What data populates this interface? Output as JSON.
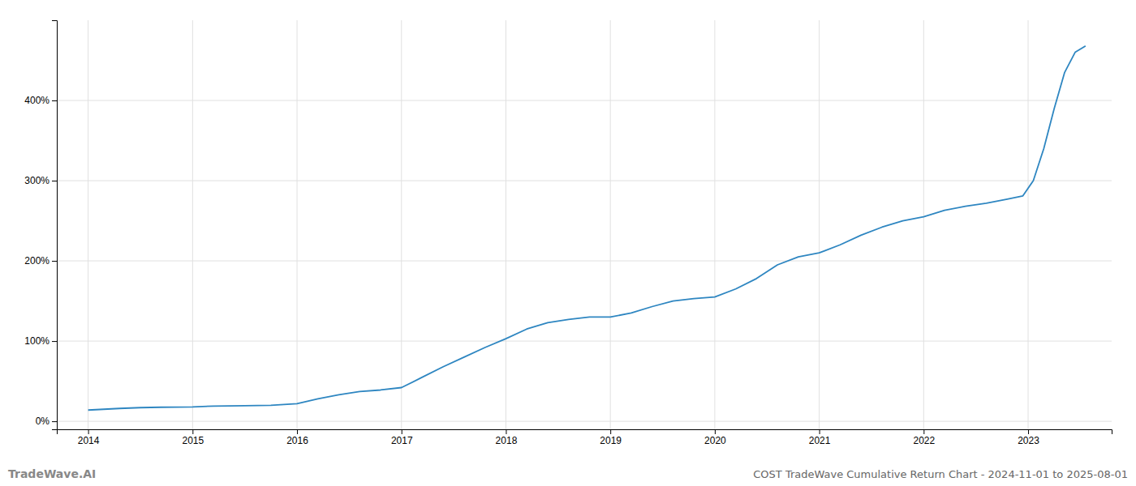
{
  "chart_data": {
    "type": "line",
    "title": "COST TradeWave Cumulative Return Chart - 2024-11-01 to 2025-08-01",
    "annotations": [
      "TradeWave.AI"
    ],
    "color": "#2e86c1",
    "grid": true,
    "x": [
      2014.0,
      2014.15,
      2014.3,
      2014.5,
      2014.7,
      2015.0,
      2015.2,
      2015.5,
      2015.75,
      2016.0,
      2016.2,
      2016.4,
      2016.6,
      2016.8,
      2017.0,
      2017.2,
      2017.4,
      2017.6,
      2017.8,
      2018.0,
      2018.2,
      2018.4,
      2018.6,
      2018.8,
      2019.0,
      2019.2,
      2019.4,
      2019.6,
      2019.8,
      2020.0,
      2020.2,
      2020.4,
      2020.6,
      2020.8,
      2021.0,
      2021.2,
      2021.4,
      2021.6,
      2021.8,
      2022.0,
      2022.2,
      2022.4,
      2022.6,
      2022.8,
      2022.95,
      2023.05,
      2023.15,
      2023.25,
      2023.35,
      2023.45,
      2023.55
    ],
    "values": [
      14,
      15,
      16,
      17,
      17.5,
      18,
      19,
      19.5,
      20,
      22,
      28,
      33,
      37,
      39,
      42,
      55,
      68,
      80,
      92,
      103,
      115,
      123,
      127,
      130,
      130,
      135,
      143,
      150,
      153,
      155,
      165,
      178,
      195,
      205,
      210,
      220,
      232,
      242,
      250,
      255,
      263,
      268,
      272,
      277,
      281,
      300,
      340,
      390,
      435,
      460,
      468
    ],
    "xlim": [
      2013.7,
      2023.8
    ],
    "xticks": [
      2014,
      2015,
      2016,
      2017,
      2018,
      2019,
      2020,
      2021,
      2022,
      2023
    ],
    "ylim": [
      -10,
      500
    ],
    "yticks": [
      {
        "value": 0,
        "label": "0%"
      },
      {
        "value": 100,
        "label": "100%"
      },
      {
        "value": 200,
        "label": "200%"
      },
      {
        "value": 300,
        "label": "300%"
      },
      {
        "value": 400,
        "label": "400%"
      }
    ]
  }
}
